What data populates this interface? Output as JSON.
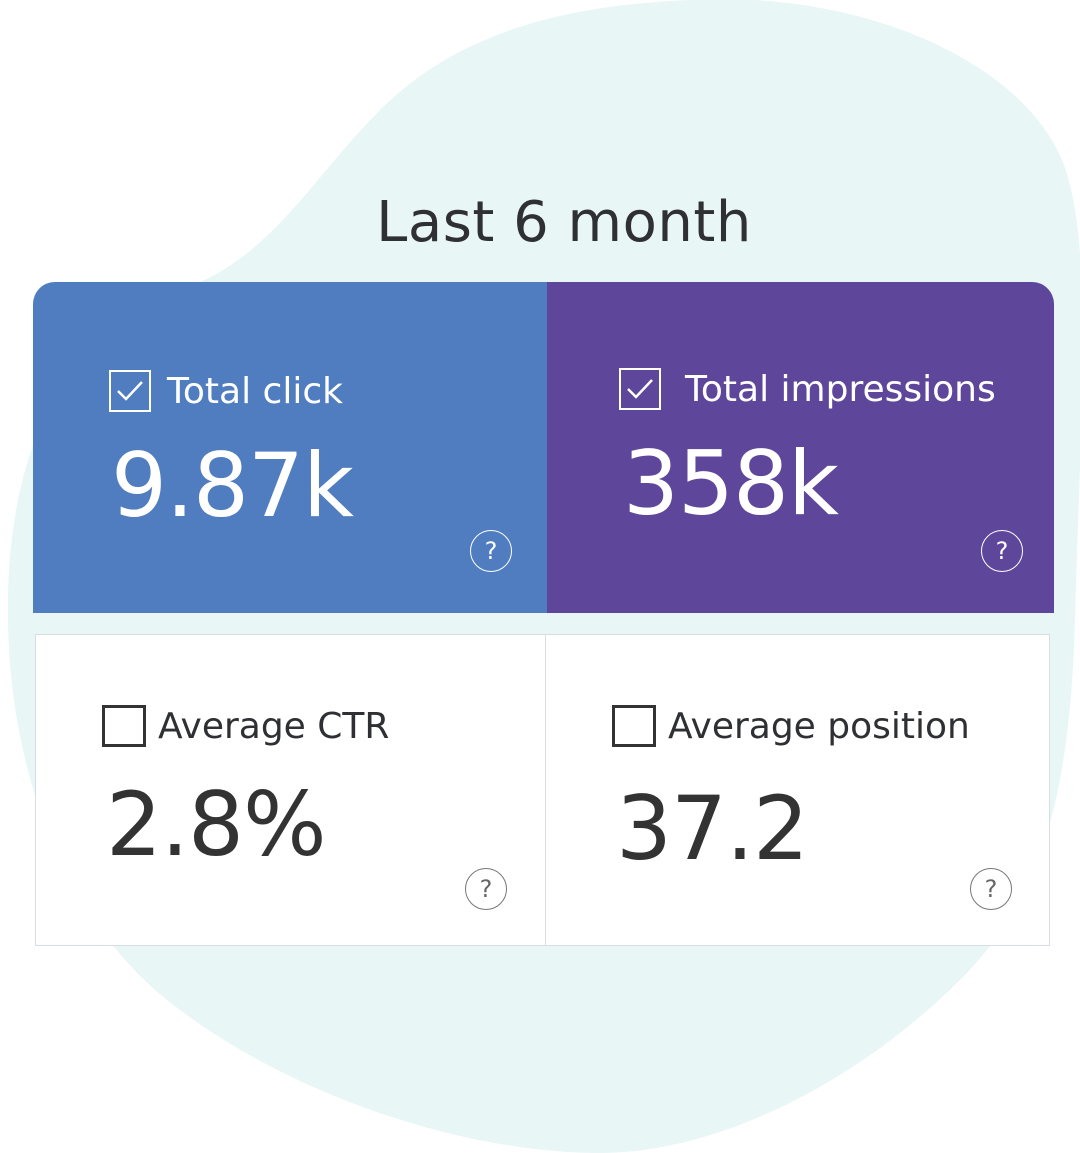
{
  "title": "Last 6 month",
  "accent": {
    "click": "#4f7dc0",
    "impressions": "#5e479b",
    "background_blob": "#e9f6f6"
  },
  "metrics": {
    "total_click": {
      "label": "Total click",
      "value": "9.87k",
      "checked": true,
      "help": "?"
    },
    "total_impressions": {
      "label": "Total impressions",
      "value": "358k",
      "checked": true,
      "help": "?"
    },
    "average_ctr": {
      "label": "Average CTR",
      "value": "2.8%",
      "checked": false,
      "help": "?"
    },
    "average_position": {
      "label": "Average position",
      "value": "37.2",
      "checked": false,
      "help": "?"
    }
  },
  "icons": [
    "checkbox-checked-icon",
    "checkbox-empty-icon",
    "help-circle-icon"
  ]
}
